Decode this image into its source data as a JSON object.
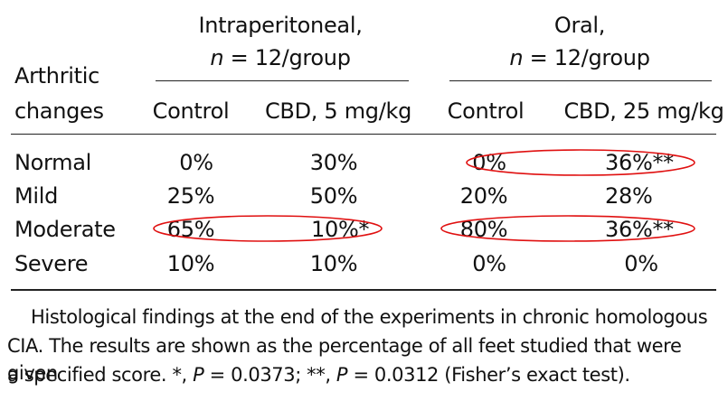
{
  "table": {
    "group_headers": [
      {
        "line1": "Intraperitoneal,",
        "n_var": "n",
        "n_rest": " = 12/group"
      },
      {
        "line1": "Oral,",
        "n_var": "n",
        "n_rest": " = 12/group"
      }
    ],
    "row_header": [
      "Arthritic",
      "changes"
    ],
    "columns": [
      "Control",
      "CBD, 5 mg/kg",
      "Control",
      "CBD, 25 mg/kg"
    ],
    "rows": [
      {
        "label": "Normal",
        "values": [
          "0%",
          "30%",
          "0%",
          "36%**"
        ]
      },
      {
        "label": "Mild",
        "values": [
          "25%",
          "50%",
          "20%",
          "28%"
        ]
      },
      {
        "label": "Moderate",
        "values": [
          "65%",
          "10%*",
          "80%",
          "36%**"
        ]
      },
      {
        "label": "Severe",
        "values": [
          "10%",
          "10%",
          "0%",
          "0%"
        ]
      }
    ]
  },
  "highlight_color": "#e01010",
  "caption": {
    "line1": "Histological findings at the end of the experiments in chronic homologous",
    "line2": "CIA. The results are shown as the percentage of all feet studied that were given",
    "line3_a": "a specified score. *, ",
    "p_var": "P",
    "line3_b": " = 0.0373; **, ",
    "line3_c": " = 0.0312 (Fisher’s exact test)."
  }
}
